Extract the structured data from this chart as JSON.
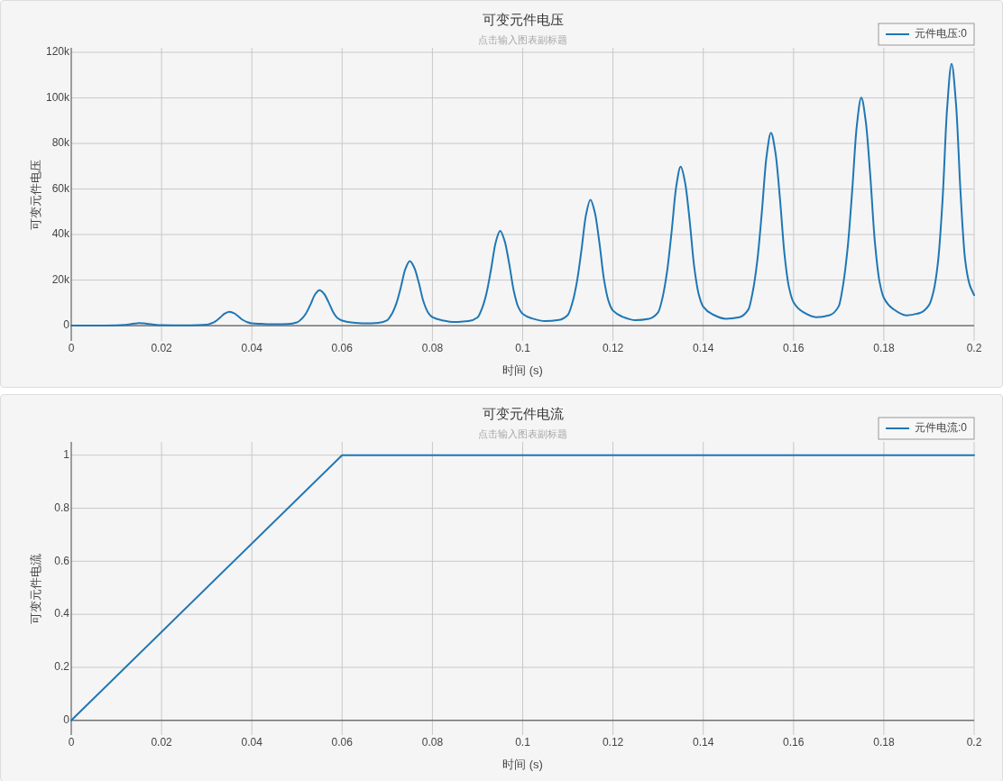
{
  "chart_data": [
    {
      "type": "line",
      "title": "可变元件电压",
      "subtitle": "点击输入图表副标题",
      "xlabel": "时间 (s)",
      "ylabel": "可变元件电压",
      "x": [
        0,
        0.005,
        0.01,
        0.012,
        0.014,
        0.015,
        0.016,
        0.018,
        0.02,
        0.025,
        0.028,
        0.03,
        0.031,
        0.032,
        0.033,
        0.034,
        0.035,
        0.036,
        0.037,
        0.038,
        0.039,
        0.04,
        0.042,
        0.045,
        0.048,
        0.05,
        0.051,
        0.052,
        0.053,
        0.054,
        0.055,
        0.056,
        0.057,
        0.058,
        0.059,
        0.06,
        0.062,
        0.065,
        0.068,
        0.07,
        0.071,
        0.072,
        0.073,
        0.074,
        0.075,
        0.076,
        0.077,
        0.078,
        0.079,
        0.08,
        0.082,
        0.085,
        0.088,
        0.09,
        0.091,
        0.092,
        0.093,
        0.094,
        0.095,
        0.096,
        0.097,
        0.098,
        0.099,
        0.1,
        0.102,
        0.105,
        0.108,
        0.11,
        0.111,
        0.112,
        0.113,
        0.114,
        0.115,
        0.116,
        0.117,
        0.118,
        0.119,
        0.12,
        0.122,
        0.125,
        0.128,
        0.13,
        0.131,
        0.132,
        0.133,
        0.134,
        0.135,
        0.136,
        0.137,
        0.138,
        0.139,
        0.14,
        0.142,
        0.145,
        0.148,
        0.15,
        0.151,
        0.152,
        0.153,
        0.154,
        0.155,
        0.156,
        0.157,
        0.158,
        0.159,
        0.16,
        0.162,
        0.165,
        0.168,
        0.17,
        0.171,
        0.172,
        0.173,
        0.174,
        0.175,
        0.176,
        0.177,
        0.178,
        0.179,
        0.18,
        0.182,
        0.185,
        0.188,
        0.19,
        0.191,
        0.192,
        0.193,
        0.194,
        0.195,
        0.196,
        0.197,
        0.198,
        0.199,
        0.2
      ],
      "series": [
        {
          "name": "元件电压:0",
          "color": "#1f77b4",
          "values": [
            0,
            0,
            100,
            300,
            900,
            1100,
            1000,
            500,
            200,
            100,
            200,
            400,
            1000,
            2000,
            3600,
            5300,
            6100,
            5500,
            4100,
            2500,
            1500,
            1000,
            800,
            600,
            700,
            1400,
            2900,
            5400,
            9300,
            13700,
            15600,
            14000,
            10300,
            6000,
            3300,
            2200,
            1400,
            1000,
            1200,
            2400,
            5100,
            9700,
            16800,
            24800,
            28300,
            25400,
            18700,
            10700,
            5900,
            3700,
            2400,
            1600,
            2000,
            3600,
            7600,
            14400,
            24800,
            36400,
            41600,
            37200,
            27300,
            15500,
            8300,
            5200,
            3200,
            2000,
            2500,
            4700,
            10000,
            19100,
            32900,
            48400,
            55300,
            49500,
            36300,
            20400,
            10900,
            6600,
            4000,
            2400,
            3000,
            5800,
            12500,
            24000,
            41500,
            61000,
            69800,
            62500,
            45800,
            25700,
            13700,
            8300,
            5000,
            3000,
            3700,
            7100,
            15300,
            29100,
            50400,
            74100,
            84700,
            75800,
            55500,
            31200,
            16700,
            10200,
            6100,
            3700,
            4600,
            8500,
            18200,
            34500,
            59600,
            87600,
            100100,
            89600,
            65700,
            37000,
            19800,
            12200,
            7400,
            4500,
            5600,
            9000,
            15000,
            28000,
            55000,
            95000,
            115000,
            97000,
            58000,
            29000,
            18000,
            13400
          ]
        }
      ],
      "xlim": [
        0,
        0.2
      ],
      "xticks": [
        0,
        0.02,
        0.04,
        0.06,
        0.08,
        0.1,
        0.12,
        0.14,
        0.16,
        0.18,
        0.2
      ],
      "ylim": [
        -6700,
        122000
      ],
      "yticks": [
        0,
        {
          "value": 20000,
          "label": "20k"
        },
        {
          "value": 40000,
          "label": "40k"
        },
        {
          "value": 60000,
          "label": "60k"
        },
        {
          "value": 80000,
          "label": "80k"
        },
        {
          "value": 100000,
          "label": "100k"
        },
        {
          "value": 120000,
          "label": "120k"
        }
      ],
      "grid": true,
      "legend": "top right"
    },
    {
      "type": "line",
      "title": "可变元件电流",
      "subtitle": "点击输入图表副标题",
      "xlabel": "时间 (s)",
      "ylabel": "可变元件电流",
      "x": [
        0,
        0.06,
        0.2
      ],
      "series": [
        {
          "name": "元件电流:0",
          "color": "#1f77b4",
          "values": [
            0,
            1,
            1
          ]
        }
      ],
      "xlim": [
        0,
        0.2
      ],
      "xticks": [
        0,
        0.02,
        0.04,
        0.06,
        0.08,
        0.1,
        0.12,
        0.14,
        0.16,
        0.18,
        0.2
      ],
      "ylim": [
        -0.055,
        1.05
      ],
      "yticks": [
        0,
        0.2,
        0.4,
        0.6,
        0.8,
        1
      ],
      "grid": true,
      "legend": "top right"
    }
  ]
}
